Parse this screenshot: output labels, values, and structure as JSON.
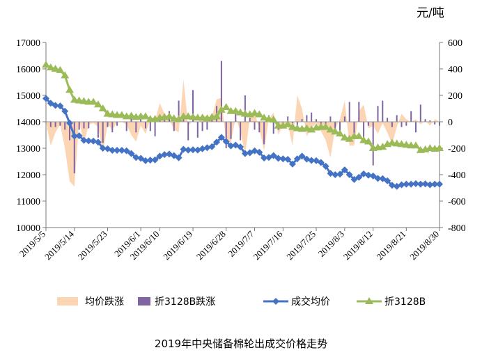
{
  "chart_data": {
    "type": "line",
    "title": "2019年中央储备棉轮出成交价格走势",
    "right_unit": "元/吨",
    "y_left": {
      "min": 10000,
      "max": 17000,
      "step": 1000,
      "ticks": [
        "10000",
        "11000",
        "12000",
        "13000",
        "14000",
        "15000",
        "16000",
        "17000"
      ]
    },
    "y_right": {
      "min": -800,
      "max": 600,
      "step": 200,
      "ticks": [
        "-800",
        "-600",
        "-400",
        "-200",
        "0",
        "200",
        "400",
        "600"
      ]
    },
    "x_tick_labels": [
      "2019/5/5",
      "2019/5/14",
      "2019/5/23",
      "2019/6/1",
      "2019/6/10",
      "2019/6/19",
      "2019/6/28",
      "2019/7/7",
      "2019/7/16",
      "2019/7/25",
      "2019/8/3",
      "2019/8/12",
      "2019/8/21",
      "2019/8/30"
    ],
    "x": [
      "5/5",
      "5/6",
      "5/7",
      "5/8",
      "5/9",
      "5/13",
      "5/14",
      "5/15",
      "5/16",
      "5/17",
      "5/20",
      "5/21",
      "5/22",
      "5/23",
      "5/24",
      "5/27",
      "5/28",
      "5/29",
      "5/30",
      "5/31",
      "6/3",
      "6/4",
      "6/5",
      "6/6",
      "6/10",
      "6/11",
      "6/12",
      "6/13",
      "6/14",
      "6/17",
      "6/18",
      "6/19",
      "6/20",
      "6/21",
      "6/24",
      "6/25",
      "6/26",
      "6/27",
      "6/28",
      "7/1",
      "7/2",
      "7/3",
      "7/4",
      "7/5",
      "7/8",
      "7/9",
      "7/10",
      "7/11",
      "7/12",
      "7/15",
      "7/16",
      "7/17",
      "7/18",
      "7/19",
      "7/22",
      "7/23",
      "7/24",
      "7/25",
      "7/26",
      "7/29",
      "7/30",
      "7/31",
      "8/1",
      "8/2",
      "8/5",
      "8/6",
      "8/7",
      "8/8",
      "8/9",
      "8/12",
      "8/13",
      "8/14",
      "8/15",
      "8/16",
      "8/19",
      "8/20",
      "8/21",
      "8/22",
      "8/23",
      "8/26",
      "8/27",
      "8/28",
      "8/29",
      "8/30"
    ],
    "series": [
      {
        "name": "成交均价",
        "axis": "left",
        "color": "#4472c4",
        "values": [
          14880,
          14700,
          14620,
          14600,
          14400,
          13950,
          13460,
          13470,
          13300,
          13280,
          13270,
          13230,
          13000,
          12980,
          12920,
          12920,
          12920,
          12900,
          12800,
          12650,
          12620,
          12530,
          12550,
          12560,
          12700,
          12760,
          12780,
          12720,
          12640,
          12960,
          12930,
          12940,
          12930,
          12980,
          13020,
          13060,
          13230,
          13410,
          13250,
          13090,
          13120,
          13050,
          12800,
          12830,
          12900,
          12850,
          12630,
          12650,
          12720,
          12620,
          12600,
          12580,
          12400,
          12600,
          12700,
          12590,
          12540,
          12530,
          12460,
          12320,
          12050,
          12000,
          12020,
          12180,
          12000,
          11820,
          11900,
          12030,
          11980,
          11950,
          11860,
          11850,
          11770,
          11600,
          11560,
          11620,
          11640,
          11640,
          11660,
          11640,
          11650,
          11620,
          11640,
          11640
        ]
      },
      {
        "name": "折3128B",
        "axis": "right",
        "color": "#9bbb59",
        "values": [
          430,
          410,
          400,
          390,
          350,
          240,
          165,
          160,
          155,
          150,
          150,
          130,
          100,
          60,
          55,
          50,
          50,
          40,
          45,
          35,
          40,
          40,
          20,
          20,
          30,
          35,
          40,
          25,
          20,
          40,
          40,
          35,
          30,
          30,
          25,
          35,
          40,
          90,
          110,
          80,
          80,
          70,
          60,
          55,
          65,
          55,
          30,
          20,
          15,
          -30,
          -30,
          -20,
          -40,
          -50,
          -55,
          -50,
          -60,
          -45,
          -40,
          -40,
          -60,
          -75,
          -90,
          -120,
          -130,
          -110,
          -110,
          -140,
          -150,
          -200,
          -195,
          -190,
          -170,
          -160,
          -165,
          -170,
          -175,
          -180,
          -180,
          -215,
          -210,
          -200,
          -205,
          -200
        ]
      },
      {
        "name": "均价跌涨",
        "axis": "right",
        "type": "area",
        "color": "#fcd5b5",
        "values": [
          0,
          -180,
          -80,
          -20,
          -200,
          -450,
          -490,
          10,
          -170,
          -20,
          -10,
          -40,
          -230,
          -20,
          -60,
          0,
          0,
          -20,
          -100,
          -150,
          -30,
          -90,
          20,
          10,
          140,
          60,
          20,
          -60,
          -80,
          320,
          -30,
          10,
          -10,
          50,
          40,
          40,
          170,
          180,
          -160,
          -160,
          30,
          -70,
          -250,
          30,
          70,
          -50,
          -220,
          20,
          70,
          -100,
          -20,
          -20,
          -180,
          200,
          100,
          -110,
          -50,
          -10,
          -70,
          -140,
          -270,
          -50,
          20,
          160,
          -180,
          -180,
          80,
          130,
          -50,
          -30,
          -90,
          -10,
          -80,
          -170,
          -40,
          60,
          20,
          0,
          20,
          -20,
          10,
          -30,
          20,
          0
        ]
      },
      {
        "name": "折3128B跌涨",
        "axis": "right",
        "type": "bar",
        "color": "#8064a2",
        "values": [
          0,
          -40,
          -40,
          -30,
          -60,
          -140,
          -390,
          -60,
          -50,
          -50,
          0,
          -120,
          -160,
          -40,
          -80,
          -30,
          0,
          -70,
          40,
          -80,
          20,
          -50,
          -70,
          -110,
          30,
          60,
          80,
          -70,
          160,
          20,
          -140,
          240,
          -120,
          -70,
          -60,
          40,
          120,
          460,
          -200,
          -130,
          60,
          -140,
          200,
          30,
          -60,
          -80,
          -170,
          50,
          -90,
          -60,
          -20,
          40,
          -10,
          -70,
          20,
          50,
          70,
          20,
          -30,
          -50,
          40,
          -70,
          -100,
          40,
          150,
          -130,
          150,
          -120,
          -30,
          -330,
          120,
          160,
          30,
          -40,
          50,
          -40,
          -30,
          80,
          -80,
          130,
          20,
          10,
          -20,
          -30
        ]
      }
    ],
    "legend": [
      {
        "label": "均价跌涨",
        "kind": "area",
        "color": "#fcd5b5"
      },
      {
        "label": "折3128B跌涨",
        "kind": "bar",
        "color": "#8064a2"
      },
      {
        "label": "成交均价",
        "kind": "line-diamond",
        "color": "#4472c4"
      },
      {
        "label": "折3128B",
        "kind": "line-triangle",
        "color": "#9bbb59"
      }
    ],
    "legend_position": "bottom",
    "grid": false
  }
}
